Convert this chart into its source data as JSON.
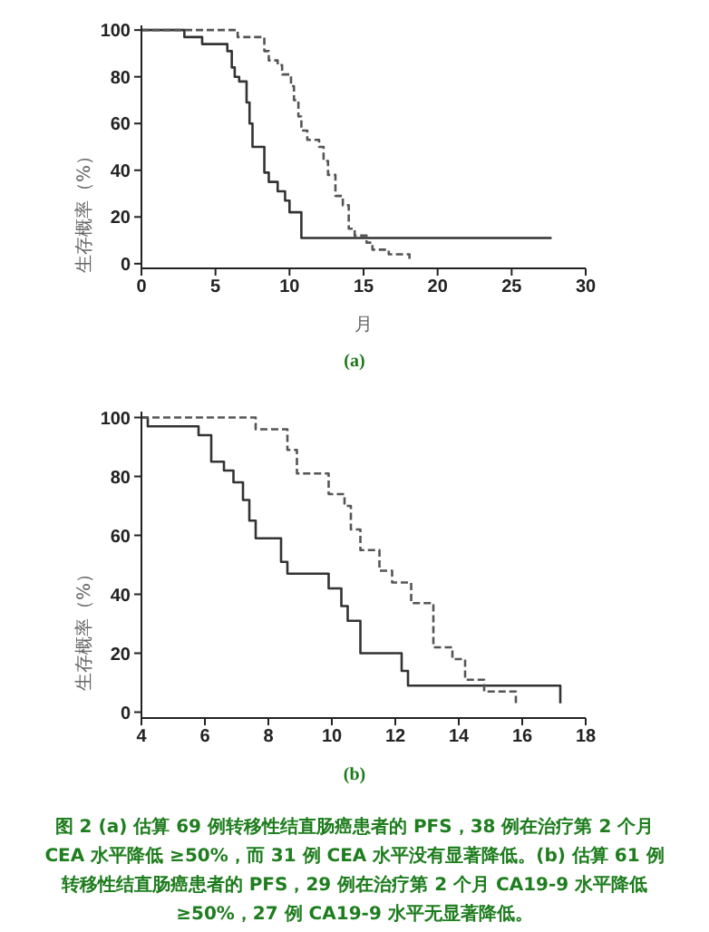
{
  "chart_data": [
    {
      "type": "step",
      "ylabel": "生存概率（%）",
      "xlabel": "月",
      "xlim": [
        0,
        30
      ],
      "xticks": [
        0,
        5,
        10,
        15,
        20,
        25,
        30
      ],
      "ylim": [
        -2,
        102
      ],
      "yticks": [
        0,
        20,
        40,
        60,
        80,
        100
      ],
      "marker": "none",
      "annotations": [
        "(a)"
      ],
      "series": [
        {
          "color": "#333333",
          "line_style": "solid",
          "x": [
            0,
            2.9,
            4.1,
            5.8,
            6.1,
            6.3,
            6.6,
            7.1,
            7.3,
            7.5,
            8.3,
            8.6,
            9.2,
            9.7,
            10.0,
            10.8,
            27.7
          ],
          "values": [
            100,
            97,
            94,
            91,
            84,
            80,
            78,
            69,
            60,
            50,
            39,
            35,
            31,
            27,
            22,
            11,
            11
          ]
        },
        {
          "color": "#555555",
          "line_style": "dashed",
          "x": [
            0,
            6.5,
            8.3,
            8.6,
            9.2,
            9.5,
            10.1,
            10.3,
            10.6,
            10.8,
            11.2,
            12.0,
            12.3,
            12.6,
            13.1,
            13.6,
            14.0,
            14.4,
            15.2,
            15.6,
            16.7,
            18.1
          ],
          "values": [
            100,
            97,
            91,
            87,
            85,
            81,
            76,
            70,
            63,
            57,
            53,
            50,
            44,
            38,
            29,
            25,
            15,
            12,
            9,
            6,
            4,
            1
          ]
        }
      ]
    },
    {
      "type": "step",
      "ylabel": "生存概率（%）",
      "xlim": [
        4,
        18
      ],
      "xticks": [
        4,
        6,
        8,
        10,
        12,
        14,
        16,
        18
      ],
      "ylim": [
        -2,
        102
      ],
      "yticks": [
        0,
        20,
        40,
        60,
        80,
        100
      ],
      "marker": "none",
      "annotations": [
        "(b)",
        "图 2 (a) 估算 69 例转移性结直肠癌患者的 PFS，38 例在治疗第 2 个月 CEA 水平降低 ≥50%，而 31 例 CEA 水平没有显著降低。(b) 估算 61 例转移性结直肠癌患者的 PFS，29 例在治疗第 2 个月 CA19-9 水平降低 ≥50%，27 例 CA19-9 水平无显著降低。"
      ],
      "series": [
        {
          "color": "#333333",
          "line_style": "solid",
          "x": [
            4,
            4.2,
            5.8,
            6.2,
            6.6,
            6.9,
            7.2,
            7.4,
            7.6,
            8.4,
            8.6,
            9.9,
            10.3,
            10.5,
            10.9,
            12.2,
            12.4,
            17.2,
            17.2
          ],
          "values": [
            100,
            97,
            94,
            85,
            82,
            78,
            72,
            65,
            59,
            51,
            47,
            42,
            36,
            31,
            20,
            14,
            9,
            9,
            3
          ]
        },
        {
          "color": "#555555",
          "line_style": "dashed",
          "x": [
            4,
            7.6,
            8.6,
            8.9,
            9.9,
            10.4,
            10.6,
            10.9,
            11.5,
            11.9,
            12.5,
            13.2,
            13.8,
            14.2,
            14.8,
            15.8,
            15.8
          ],
          "values": [
            100,
            96,
            89,
            81,
            74,
            70,
            62,
            55,
            48,
            44,
            37,
            22,
            18,
            11,
            7,
            3,
            3
          ]
        }
      ]
    }
  ]
}
